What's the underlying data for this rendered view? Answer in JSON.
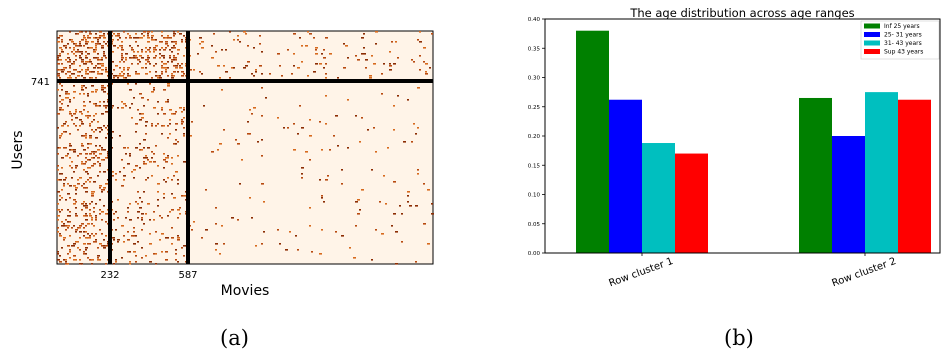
{
  "chart_data": [
    {
      "type": "heatmap",
      "xlabel": "Movies",
      "ylabel": "Users",
      "x_ticks": [
        232,
        587
      ],
      "y_ticks": [
        741
      ],
      "caption": "(a)",
      "colors": {
        "background": "#fff4e8",
        "dots": [
          "#b84a10",
          "#d76a1e",
          "#8c2d04"
        ],
        "lines": "#000000"
      }
    },
    {
      "type": "bar",
      "title": "The age distribution across age ranges",
      "categories": [
        "Row cluster 1",
        "Row cluster 2"
      ],
      "series": [
        {
          "name": "Inf 25 years",
          "color": "#008000",
          "values": [
            0.38,
            0.265
          ]
        },
        {
          "name": "25- 31 years",
          "color": "#0000ff",
          "values": [
            0.262,
            0.2
          ]
        },
        {
          "name": "31- 43 years",
          "color": "#00bfbf",
          "values": [
            0.188,
            0.275
          ]
        },
        {
          "name": "Sup 43 years",
          "color": "#ff0000",
          "values": [
            0.17,
            0.262
          ]
        }
      ],
      "ylim": [
        0,
        0.4
      ],
      "yticks": [
        "0.00",
        "0.05",
        "0.10",
        "0.15",
        "0.20",
        "0.25",
        "0.30",
        "0.35",
        "0.40"
      ],
      "legend_position": "top-right",
      "caption": "(b)"
    }
  ]
}
